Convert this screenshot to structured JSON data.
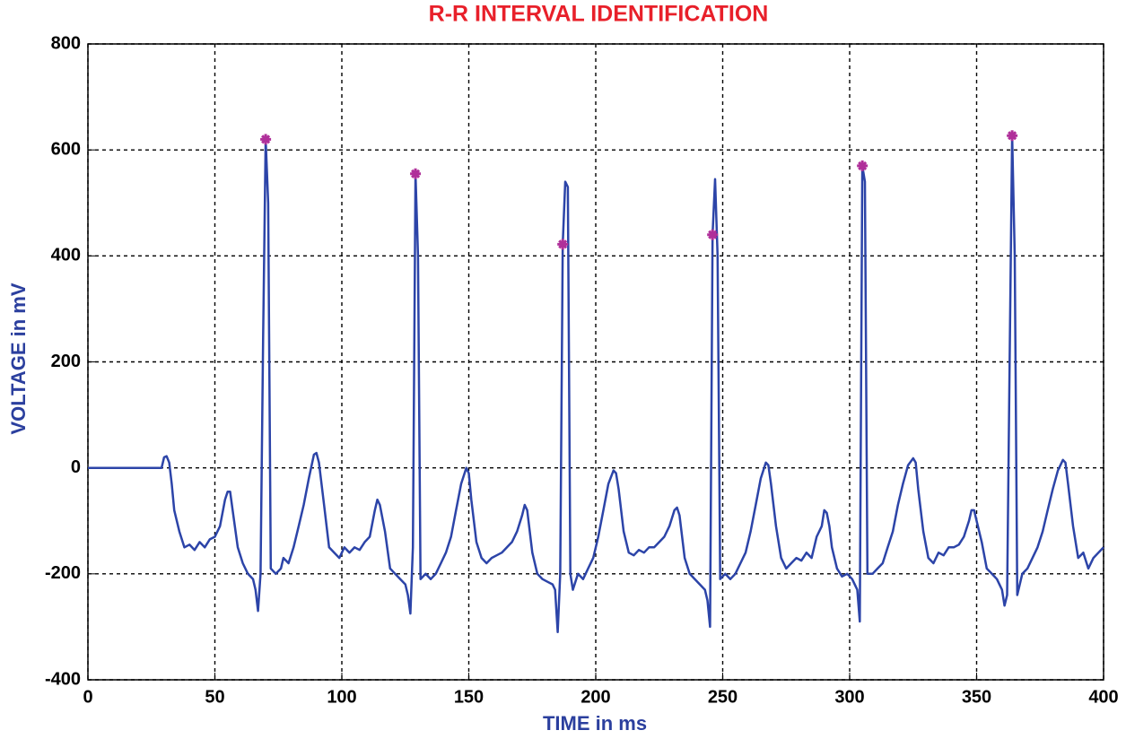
{
  "chart_data": {
    "type": "line",
    "title": "R-R INTERVAL IDENTIFICATION",
    "x_label": "TIME in ms",
    "y_label": "VOLTAGE in mV",
    "xlim": [
      0,
      400
    ],
    "ylim": [
      -400,
      800
    ],
    "xticks": [
      0,
      50,
      100,
      150,
      200,
      250,
      300,
      350,
      400
    ],
    "yticks": [
      -400,
      -200,
      0,
      200,
      400,
      600,
      800
    ],
    "grid": true,
    "x": [
      0,
      29,
      30,
      31,
      32,
      33,
      34,
      36,
      38,
      40,
      42,
      44,
      46,
      48,
      50,
      52,
      54,
      55,
      56,
      57,
      59,
      61,
      63,
      65,
      66,
      67,
      68,
      69,
      70,
      71,
      72,
      74,
      76,
      77,
      79,
      81,
      83,
      85,
      87,
      89,
      90,
      91,
      93,
      95,
      97,
      99,
      101,
      103,
      105,
      107,
      109,
      111,
      113,
      114,
      115,
      117,
      119,
      121,
      123,
      125,
      126,
      127,
      128,
      129,
      130,
      131,
      133,
      135,
      137,
      139,
      141,
      143,
      145,
      147,
      149,
      150,
      151,
      153,
      155,
      157,
      159,
      161,
      163,
      165,
      167,
      169,
      171,
      172,
      173,
      175,
      177,
      179,
      181,
      183,
      184,
      185,
      186,
      187,
      188,
      189,
      190,
      191,
      193,
      195,
      197,
      199,
      201,
      203,
      205,
      207,
      208,
      209,
      211,
      213,
      215,
      217,
      219,
      221,
      223,
      225,
      227,
      229,
      231,
      232,
      233,
      235,
      237,
      239,
      241,
      243,
      244,
      245,
      246,
      247,
      248,
      249,
      251,
      253,
      255,
      257,
      259,
      261,
      263,
      265,
      267,
      268,
      269,
      271,
      273,
      275,
      277,
      279,
      281,
      283,
      285,
      287,
      289,
      290,
      291,
      292,
      293,
      295,
      297,
      299,
      301,
      303,
      304,
      305,
      306,
      307,
      309,
      311,
      313,
      315,
      317,
      319,
      321,
      323,
      325,
      326,
      327,
      329,
      331,
      333,
      335,
      337,
      339,
      341,
      343,
      345,
      347,
      348,
      349,
      350,
      352,
      354,
      356,
      358,
      360,
      361,
      362,
      363,
      364,
      365,
      366,
      368,
      370,
      372,
      374,
      376,
      378,
      380,
      382,
      384,
      385,
      386,
      388,
      390,
      392,
      394,
      396,
      398,
      400
    ],
    "series": [
      {
        "color": "#2c44a8",
        "values": [
          0,
          0,
          20,
          22,
          10,
          -30,
          -80,
          -120,
          -150,
          -145,
          -155,
          -140,
          -150,
          -135,
          -130,
          -110,
          -60,
          -45,
          -45,
          -80,
          -150,
          -180,
          -200,
          -210,
          -230,
          -270,
          -200,
          250,
          620,
          500,
          -190,
          -200,
          -190,
          -170,
          -180,
          -150,
          -110,
          -70,
          -20,
          25,
          28,
          10,
          -70,
          -150,
          -160,
          -170,
          -150,
          -160,
          -150,
          -155,
          -140,
          -130,
          -80,
          -60,
          -70,
          -120,
          -190,
          -200,
          -210,
          -220,
          -240,
          -275,
          -150,
          555,
          400,
          -210,
          -200,
          -210,
          -200,
          -180,
          -160,
          -130,
          -80,
          -30,
          0,
          -10,
          -60,
          -140,
          -170,
          -180,
          -170,
          -165,
          -160,
          -150,
          -140,
          -120,
          -90,
          -70,
          -80,
          -160,
          -200,
          -210,
          -215,
          -220,
          -230,
          -310,
          -200,
          422,
          540,
          530,
          -200,
          -230,
          -200,
          -210,
          -190,
          -170,
          -130,
          -80,
          -30,
          -5,
          -10,
          -40,
          -120,
          -160,
          -165,
          -155,
          -160,
          -150,
          -150,
          -140,
          -130,
          -110,
          -80,
          -75,
          -90,
          -170,
          -200,
          -210,
          -220,
          -230,
          -250,
          -300,
          440,
          545,
          400,
          -210,
          -200,
          -210,
          -200,
          -180,
          -160,
          -120,
          -70,
          -20,
          10,
          5,
          -30,
          -110,
          -170,
          -190,
          -180,
          -170,
          -175,
          -160,
          -170,
          -130,
          -110,
          -80,
          -85,
          -110,
          -150,
          -190,
          -205,
          -200,
          -210,
          -230,
          -290,
          570,
          540,
          -200,
          -200,
          -190,
          -180,
          -150,
          -120,
          -70,
          -30,
          5,
          18,
          10,
          -40,
          -120,
          -170,
          -180,
          -160,
          -165,
          -150,
          -150,
          -145,
          -130,
          -100,
          -80,
          -80,
          -100,
          -140,
          -190,
          -200,
          -210,
          -230,
          -260,
          -240,
          200,
          627,
          400,
          -240,
          -200,
          -190,
          -170,
          -150,
          -120,
          -80,
          -40,
          -5,
          15,
          10,
          -30,
          -110,
          -170,
          -160,
          -190,
          -170,
          -160,
          -150
        ]
      }
    ],
    "markers": {
      "color": "#b0309a",
      "x": [
        70,
        129,
        187,
        246,
        305,
        364
      ],
      "values": [
        620,
        555,
        422,
        440,
        570,
        627
      ]
    }
  }
}
